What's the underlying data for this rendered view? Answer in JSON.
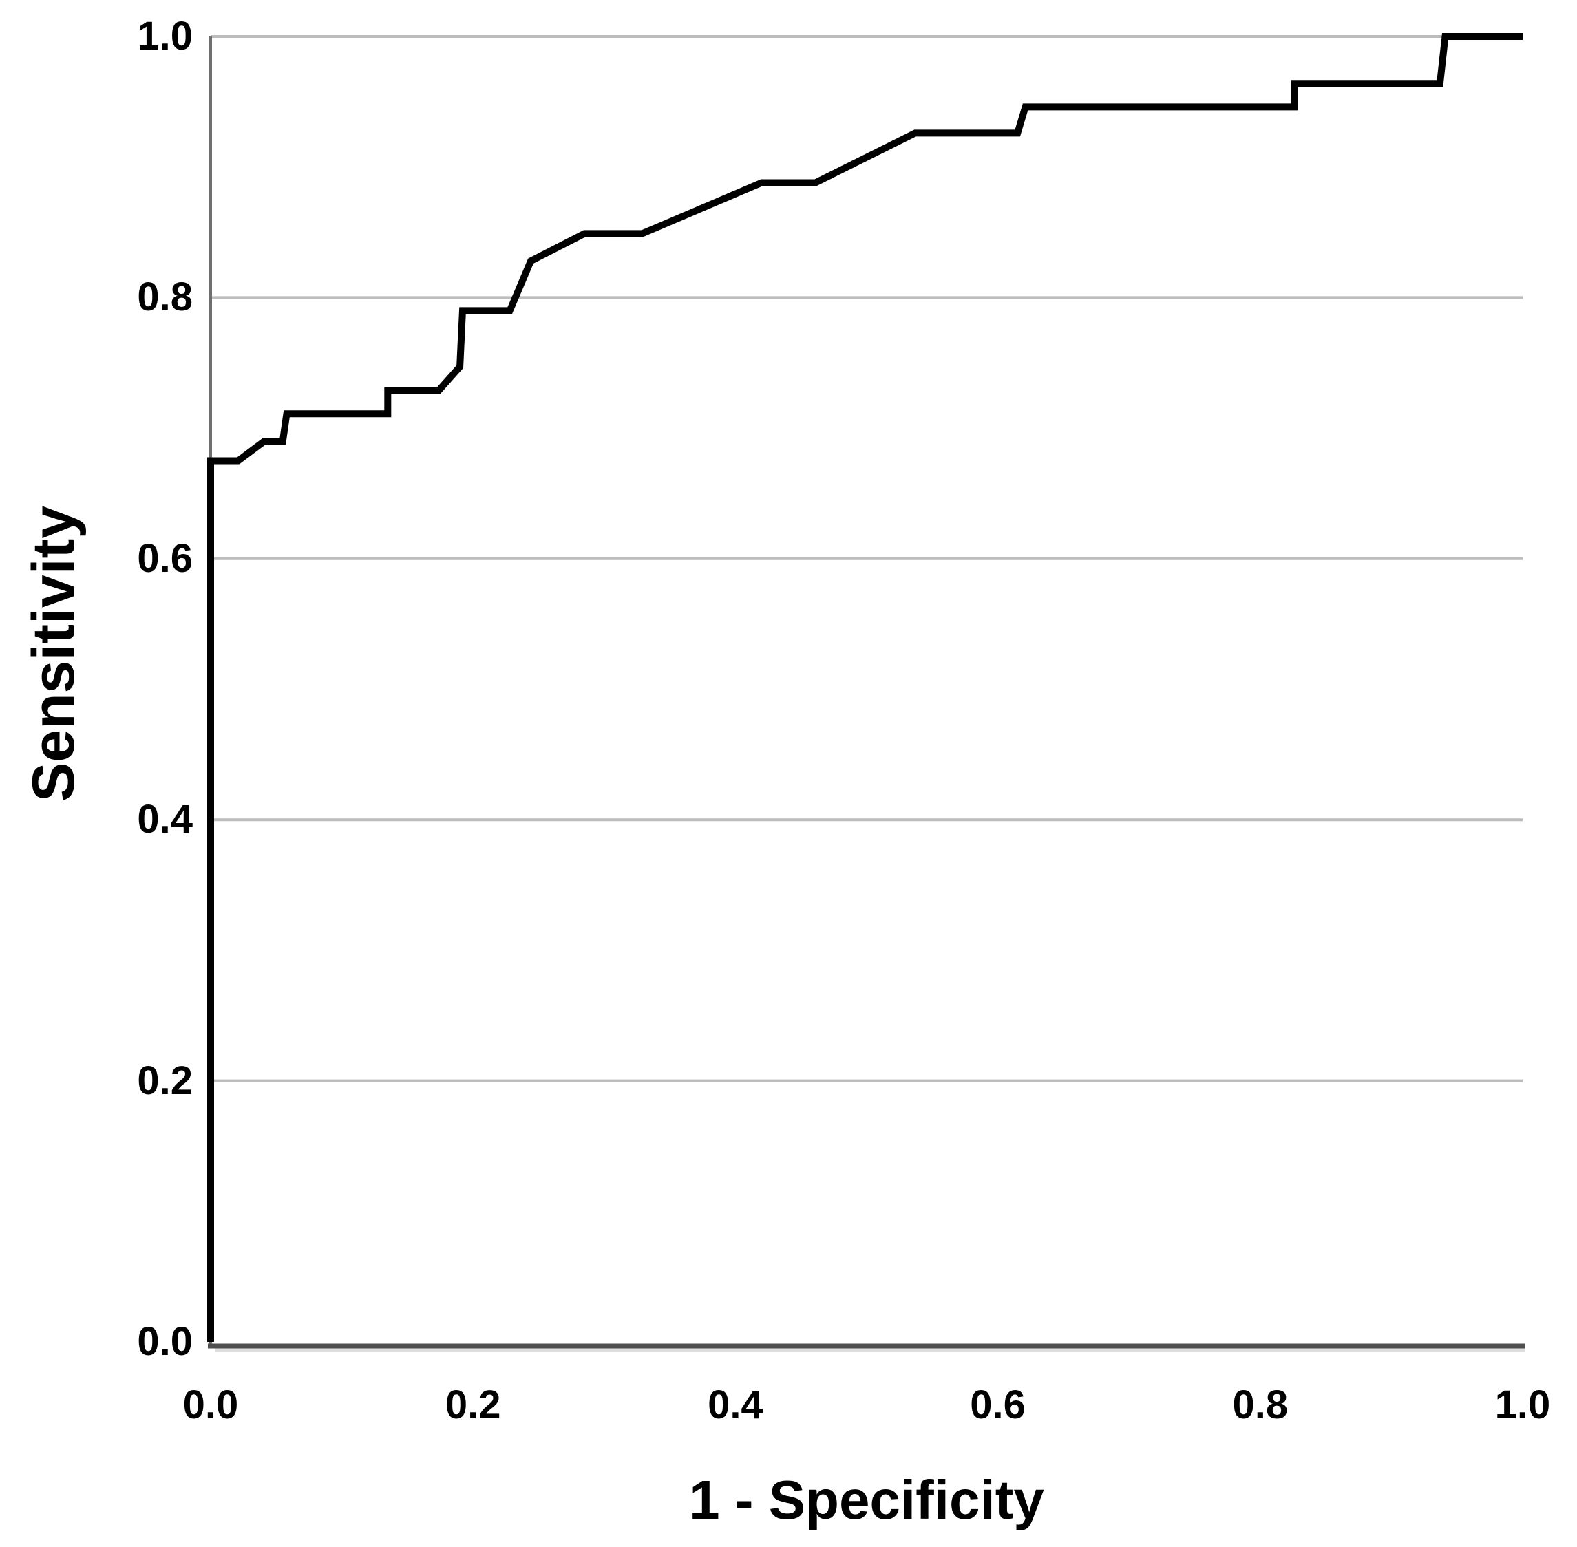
{
  "chart_data": {
    "type": "line",
    "subtype": "roc-curve",
    "title": "",
    "xlabel": "1 - Specificity",
    "ylabel": "Sensitivity",
    "xlim": [
      0.0,
      1.0
    ],
    "ylim": [
      0.0,
      1.0
    ],
    "x_ticks": [
      0.0,
      0.2,
      0.4,
      0.6,
      0.8,
      1.0
    ],
    "y_ticks": [
      0.0,
      0.2,
      0.4,
      0.6,
      0.8,
      1.0
    ],
    "tick_decimals": 1,
    "grid": {
      "horizontal": true,
      "vertical": false
    },
    "legend": "none",
    "series": [
      {
        "points": [
          [
            0.0,
            0.0
          ],
          [
            0.0,
            0.675
          ],
          [
            0.021,
            0.675
          ],
          [
            0.041,
            0.69
          ],
          [
            0.055,
            0.69
          ],
          [
            0.058,
            0.711
          ],
          [
            0.135,
            0.711
          ],
          [
            0.135,
            0.729
          ],
          [
            0.174,
            0.729
          ],
          [
            0.19,
            0.747
          ],
          [
            0.192,
            0.79
          ],
          [
            0.228,
            0.79
          ],
          [
            0.244,
            0.828
          ],
          [
            0.285,
            0.849
          ],
          [
            0.329,
            0.849
          ],
          [
            0.42,
            0.888
          ],
          [
            0.461,
            0.888
          ],
          [
            0.537,
            0.926
          ],
          [
            0.615,
            0.926
          ],
          [
            0.621,
            0.946
          ],
          [
            0.826,
            0.946
          ],
          [
            0.826,
            0.964
          ],
          [
            0.937,
            0.964
          ],
          [
            0.941,
            1.0
          ],
          [
            1.0,
            1.0
          ]
        ]
      }
    ]
  },
  "colors": {
    "background": "#ffffff",
    "curve": "#000000",
    "gridline": "#bcbcbc",
    "x_axis": "#4f4f4f",
    "x_axis_shadow": "#dedede",
    "y_axis": "#6e6e6e",
    "text": "#000000"
  }
}
